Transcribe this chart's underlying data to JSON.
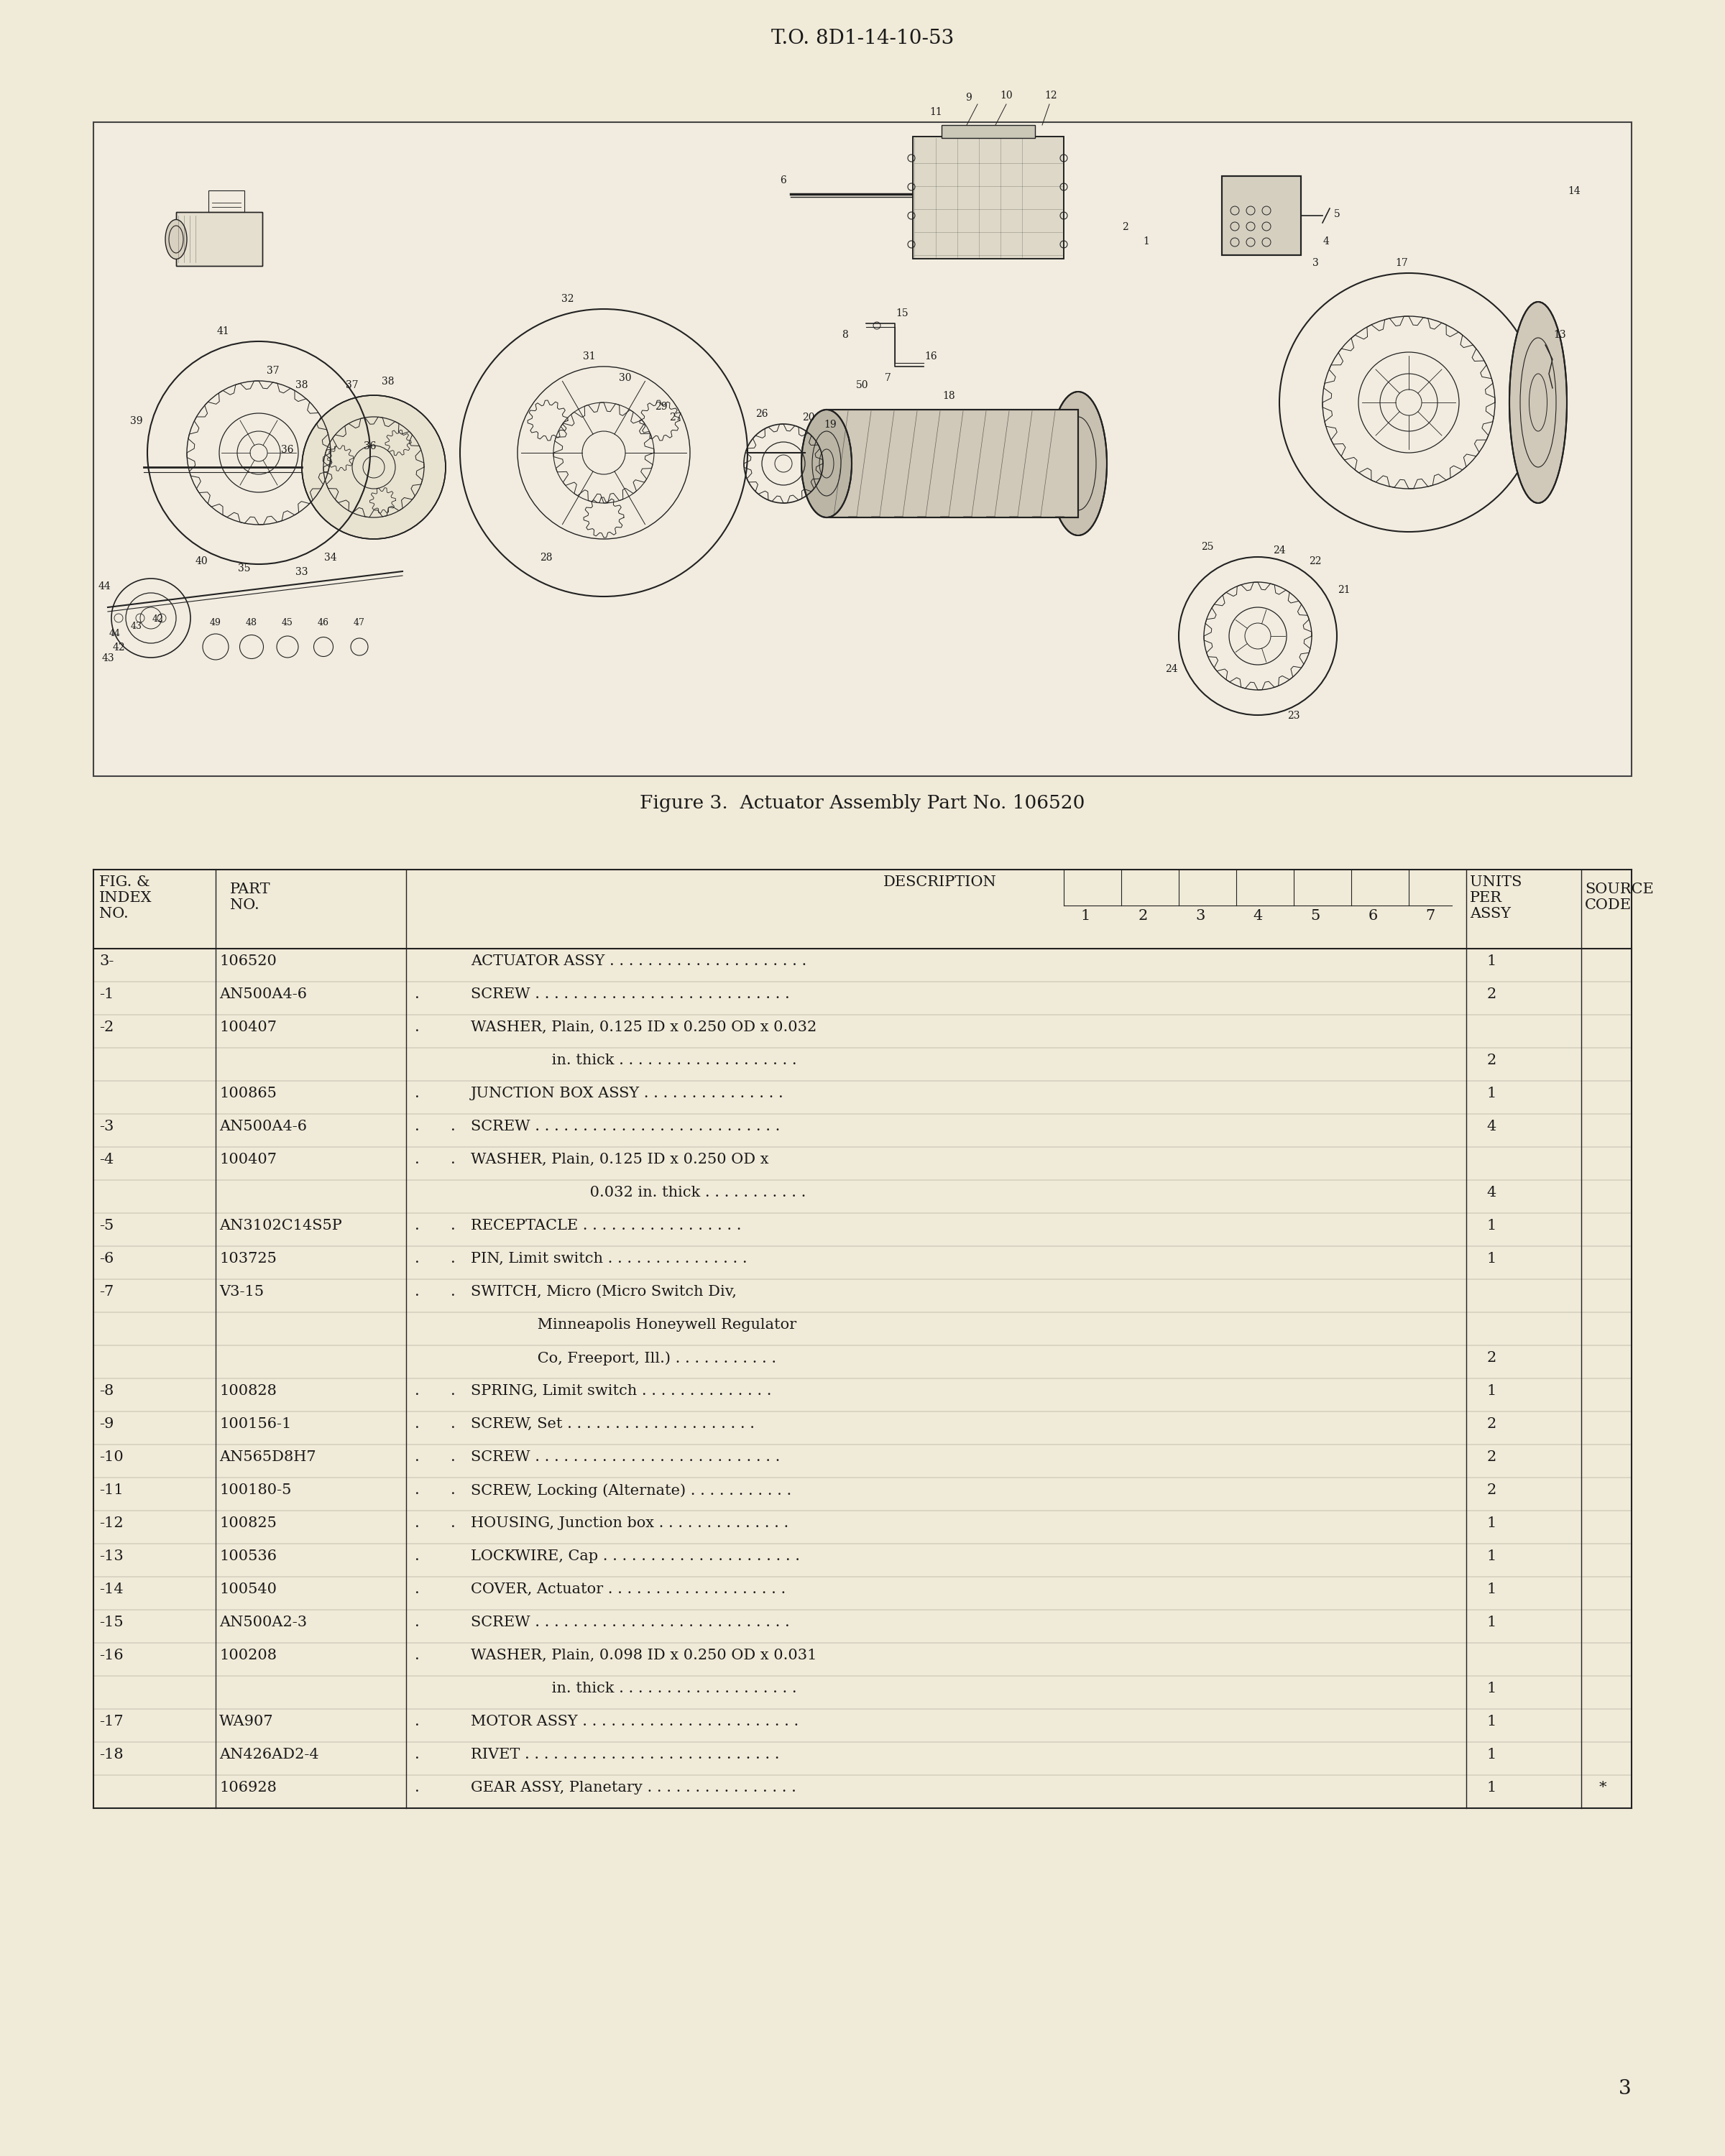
{
  "page_bg": "#f0ead8",
  "diagram_bg": "#f2ece0",
  "header_text": "T.O. 8D1-14-10-53",
  "figure_caption": "Figure 3.  Actuator Assembly Part No. 106520",
  "page_number": "3",
  "text_color": "#1a1a1a",
  "line_color": "#222222",
  "table_rows": [
    {
      "index": "3-",
      "part": "106520",
      "dot1": "",
      "dot2": "",
      "desc": "ACTUATOR ASSY",
      "dots": " . . . . . . . . . . . . . . . . . . . . .",
      "qty": "1",
      "source": ""
    },
    {
      "index": "-1",
      "part": "AN500A4-6",
      "dot1": ".",
      "dot2": "",
      "desc": "SCREW",
      "dots": " . . . . . . . . . . . . . . . . . . . . . . . . . . .",
      "qty": "2",
      "source": ""
    },
    {
      "index": "-2",
      "part": "100407",
      "dot1": ".",
      "dot2": "",
      "desc": "WASHER, Plain, 0.125 ID x 0.250 OD x 0.032",
      "dots": "",
      "qty": "",
      "source": ""
    },
    {
      "index": "",
      "part": "",
      "dot1": "",
      "dot2": "",
      "desc": "                 in. thick",
      "dots": " . . . . . . . . . . . . . . . . . . .",
      "qty": "2",
      "source": ""
    },
    {
      "index": "",
      "part": "100865",
      "dot1": ".",
      "dot2": "",
      "desc": "JUNCTION BOX ASSY",
      "dots": " . . . . . . . . . . . . . . .",
      "qty": "1",
      "source": ""
    },
    {
      "index": "-3",
      "part": "AN500A4-6",
      "dot1": ".",
      "dot2": ".",
      "desc": "SCREW",
      "dots": " . . . . . . . . . . . . . . . . . . . . . . . . . .",
      "qty": "4",
      "source": ""
    },
    {
      "index": "-4",
      "part": "100407",
      "dot1": ".",
      "dot2": ".",
      "desc": "WASHER, Plain, 0.125 ID x 0.250 OD x",
      "dots": "",
      "qty": "",
      "source": ""
    },
    {
      "index": "",
      "part": "",
      "dot1": "",
      "dot2": "",
      "desc": "                         0.032 in. thick",
      "dots": " . . . . . . . . . . .",
      "qty": "4",
      "source": ""
    },
    {
      "index": "-5",
      "part": "AN3102C14S5P",
      "dot1": ".",
      "dot2": ".",
      "desc": "RECEPTACLE",
      "dots": " . . . . . . . . . . . . . . . . .",
      "qty": "1",
      "source": ""
    },
    {
      "index": "-6",
      "part": "103725",
      "dot1": ".",
      "dot2": ".",
      "desc": "PIN, Limit switch",
      "dots": " . . . . . . . . . . . . . . .",
      "qty": "1",
      "source": ""
    },
    {
      "index": "-7",
      "part": "V3-15",
      "dot1": ".",
      "dot2": ".",
      "desc": "SWITCH, Micro (Micro Switch Div,",
      "dots": "",
      "qty": "",
      "source": ""
    },
    {
      "index": "",
      "part": "",
      "dot1": "",
      "dot2": "",
      "desc": "              Minneapolis Honeywell Regulator",
      "dots": "",
      "qty": "",
      "source": ""
    },
    {
      "index": "",
      "part": "",
      "dot1": "",
      "dot2": "",
      "desc": "              Co, Freeport, Ill.)",
      "dots": " . . . . . . . . . . .",
      "qty": "2",
      "source": ""
    },
    {
      "index": "-8",
      "part": "100828",
      "dot1": ".",
      "dot2": ".",
      "desc": "SPRING, Limit switch",
      "dots": " . . . . . . . . . . . . . .",
      "qty": "1",
      "source": ""
    },
    {
      "index": "-9",
      "part": "100156-1",
      "dot1": ".",
      "dot2": ".",
      "desc": "SCREW, Set",
      "dots": " . . . . . . . . . . . . . . . . . . . .",
      "qty": "2",
      "source": ""
    },
    {
      "index": "-10",
      "part": "AN565D8H7",
      "dot1": ".",
      "dot2": ".",
      "desc": "SCREW",
      "dots": " . . . . . . . . . . . . . . . . . . . . . . . . . .",
      "qty": "2",
      "source": ""
    },
    {
      "index": "-11",
      "part": "100180-5",
      "dot1": ".",
      "dot2": ".",
      "desc": "SCREW, Locking (Alternate)",
      "dots": " . . . . . . . . . . .",
      "qty": "2",
      "source": ""
    },
    {
      "index": "-12",
      "part": "100825",
      "dot1": ".",
      "dot2": ".",
      "desc": "HOUSING, Junction box",
      "dots": " . . . . . . . . . . . . . .",
      "qty": "1",
      "source": ""
    },
    {
      "index": "-13",
      "part": "100536",
      "dot1": ".",
      "dot2": "",
      "desc": "LOCKWIRE, Cap",
      "dots": " . . . . . . . . . . . . . . . . . . . . .",
      "qty": "1",
      "source": ""
    },
    {
      "index": "-14",
      "part": "100540",
      "dot1": ".",
      "dot2": "",
      "desc": "COVER, Actuator",
      "dots": " . . . . . . . . . . . . . . . . . . .",
      "qty": "1",
      "source": ""
    },
    {
      "index": "-15",
      "part": "AN500A2-3",
      "dot1": ".",
      "dot2": "",
      "desc": "SCREW",
      "dots": " . . . . . . . . . . . . . . . . . . . . . . . . . . .",
      "qty": "1",
      "source": ""
    },
    {
      "index": "-16",
      "part": "100208",
      "dot1": ".",
      "dot2": "",
      "desc": "WASHER, Plain, 0.098 ID x 0.250 OD x 0.031",
      "dots": "",
      "qty": "",
      "source": ""
    },
    {
      "index": "",
      "part": "",
      "dot1": "",
      "dot2": "",
      "desc": "                 in. thick",
      "dots": " . . . . . . . . . . . . . . . . . . .",
      "qty": "1",
      "source": ""
    },
    {
      "index": "-17",
      "part": "WA907",
      "dot1": ".",
      "dot2": "",
      "desc": "MOTOR ASSY",
      "dots": " . . . . . . . . . . . . . . . . . . . . . . .",
      "qty": "1",
      "source": ""
    },
    {
      "index": "-18",
      "part": "AN426AD2-4",
      "dot1": ".",
      "dot2": "",
      "desc": "RIVET",
      "dots": " . . . . . . . . . . . . . . . . . . . . . . . . . . .",
      "qty": "1",
      "source": ""
    },
    {
      "index": "",
      "part": "106928",
      "dot1": ".",
      "dot2": "",
      "desc": "GEAR ASSY, Planetary",
      "dots": " . . . . . . . . . . . . . . . .",
      "qty": "1",
      "source": "*"
    }
  ]
}
